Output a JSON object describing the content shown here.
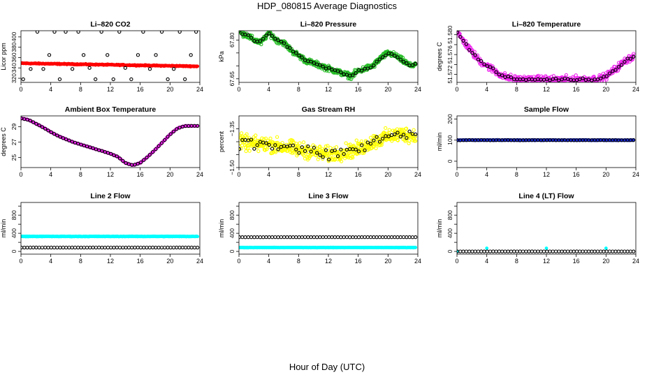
{
  "page": {
    "title": "HDP_080815   Average Diagnostics",
    "xlabel": "Hour of Day (UTC)"
  },
  "colors": {
    "red": "#ff0000",
    "green": "#22bb22",
    "magenta": "#ee22ee",
    "yellow": "#ffff00",
    "blue": "#1a2ad6",
    "cyan": "#00ffff",
    "black": "#000000"
  },
  "chart_data": [
    {
      "type": "scatter",
      "id": "co2",
      "title": "Li–820 CO2",
      "ylabel": "Licor ppm",
      "xlim": [
        0,
        24
      ],
      "ylim": [
        312,
        412
      ],
      "xticks": [
        0,
        4,
        8,
        12,
        16,
        20,
        24
      ],
      "xticklabels": [
        "0",
        "4",
        "8",
        "12",
        "16",
        "20",
        "24"
      ],
      "yticks": [
        320,
        340,
        360,
        380,
        400
      ],
      "yticklabels": [
        "320",
        "340",
        "360",
        "380",
        "400"
      ],
      "series": [
        {
          "name": "all",
          "color": "#ff0000",
          "marker": "filled",
          "model": {
            "kind": "linear",
            "a": 349,
            "b": -0.25,
            "noise": 0.8,
            "count": 400
          }
        },
        {
          "name": "averages",
          "color": "#000000",
          "marker": "open",
          "x": [
            0.3,
            1.3,
            2.2,
            3.0,
            3.8,
            4.5,
            5.2,
            6.0,
            6.9,
            7.7,
            8.4,
            9.2,
            10.0,
            10.8,
            11.6,
            12.4,
            13.2,
            14.0,
            14.8,
            15.7,
            16.4,
            17.3,
            18.1,
            18.9,
            19.7,
            20.5,
            21.3,
            22.0,
            22.8,
            23.5
          ],
          "y": [
            318,
            338,
            410,
            338,
            365,
            410,
            318,
            410,
            338,
            410,
            365,
            340,
            318,
            410,
            365,
            318,
            410,
            340,
            318,
            365,
            410,
            338,
            365,
            410,
            318,
            338,
            410,
            318,
            365,
            410
          ]
        }
      ]
    },
    {
      "type": "scatter",
      "id": "pressure",
      "title": "Li–820 Pressure",
      "ylabel": "kPa",
      "xlim": [
        0,
        24
      ],
      "ylim": [
        67.636,
        67.836
      ],
      "xticks": [
        0,
        4,
        8,
        12,
        16,
        20,
        24
      ],
      "xticklabels": [
        "0",
        "4",
        "8",
        "12",
        "16",
        "20",
        "24"
      ],
      "yticks": [
        67.65,
        67.7,
        67.75,
        67.8
      ],
      "yticklabels": [
        "67.65",
        "",
        "",
        "67.80"
      ],
      "series": [
        {
          "name": "all",
          "color": "#22bb22",
          "marker": "open",
          "model": {
            "kind": "knots",
            "x": [
              0,
              1,
              2,
              3,
              4,
              5,
              6,
              7,
              8,
              9,
              10,
              11,
              12,
              13,
              14,
              15,
              16,
              17,
              18,
              19,
              20,
              21,
              22,
              23,
              24
            ],
            "y": [
              67.83,
              67.82,
              67.8,
              67.79,
              67.83,
              67.8,
              67.79,
              67.76,
              67.74,
              67.72,
              67.71,
              67.7,
              67.69,
              67.68,
              67.67,
              67.66,
              67.68,
              67.69,
              67.7,
              67.73,
              67.75,
              67.74,
              67.72,
              67.7,
              67.71
            ],
            "noise": 0.009,
            "count": 500
          }
        },
        {
          "name": "averages",
          "color": "#000000",
          "marker": "open",
          "model": {
            "kind": "knots",
            "x": [
              0,
              1,
              2,
              3,
              4,
              5,
              6,
              7,
              8,
              9,
              10,
              11,
              12,
              13,
              14,
              15,
              16,
              17,
              18,
              19,
              20,
              21,
              22,
              23,
              24
            ],
            "y": [
              67.83,
              67.82,
              67.8,
              67.79,
              67.83,
              67.8,
              67.79,
              67.76,
              67.74,
              67.72,
              67.71,
              67.7,
              67.69,
              67.68,
              67.67,
              67.66,
              67.68,
              67.69,
              67.7,
              67.73,
              67.75,
              67.74,
              67.72,
              67.7,
              67.71
            ],
            "noise": 0.004,
            "count": 60
          }
        }
      ]
    },
    {
      "type": "scatter",
      "id": "temperature",
      "title": "Li–820 Temperature",
      "ylabel": "degrees C",
      "xlim": [
        0,
        24
      ],
      "ylim": [
        51.5704,
        51.5808
      ],
      "xticks": [
        0,
        4,
        8,
        12,
        16,
        20,
        24
      ],
      "xticklabels": [
        "0",
        "4",
        "8",
        "12",
        "16",
        "20",
        "24"
      ],
      "yticks": [
        51.572,
        51.574,
        51.576,
        51.578,
        51.58
      ],
      "yticklabels": [
        "51.572",
        "",
        "51.576",
        "",
        "51.580"
      ],
      "series": [
        {
          "name": "all",
          "color": "#ee22ee",
          "marker": "open",
          "model": {
            "kind": "knots",
            "x": [
              0,
              1,
              2,
              3,
              4,
              5,
              6,
              7,
              8,
              10,
              12,
              14,
              16,
              18,
              19,
              20,
              21,
              22,
              23,
              24
            ],
            "y": [
              51.5805,
              51.5785,
              51.5765,
              51.5748,
              51.5738,
              51.5728,
              51.5718,
              51.5713,
              51.571,
              51.571,
              51.571,
              51.571,
              51.571,
              51.571,
              51.5711,
              51.5716,
              51.5728,
              51.574,
              51.5752,
              51.5758
            ],
            "noise": 0.0006,
            "count": 420
          }
        },
        {
          "name": "averages",
          "color": "#000000",
          "marker": "open",
          "model": {
            "kind": "knots",
            "x": [
              0,
              1,
              2,
              3,
              4,
              5,
              6,
              7,
              8,
              10,
              12,
              14,
              16,
              18,
              19,
              20,
              21,
              22,
              23,
              24
            ],
            "y": [
              51.5805,
              51.5785,
              51.5765,
              51.5748,
              51.5738,
              51.5728,
              51.5718,
              51.5713,
              51.571,
              51.571,
              51.571,
              51.571,
              51.571,
              51.571,
              51.5711,
              51.5716,
              51.5728,
              51.574,
              51.5752,
              51.5758
            ],
            "noise": 0.0002,
            "count": 60
          }
        }
      ]
    },
    {
      "type": "scatter",
      "id": "ambient",
      "title": "Ambient Box Temperature",
      "ylabel": "degrees C",
      "xlim": [
        0,
        24
      ],
      "ylim": [
        23.7,
        30.4
      ],
      "xticks": [
        0,
        4,
        8,
        12,
        16,
        20,
        24
      ],
      "xticklabels": [
        "0",
        "4",
        "8",
        "12",
        "16",
        "20",
        "24"
      ],
      "yticks": [
        25,
        27,
        29
      ],
      "yticklabels": [
        "25",
        "27",
        "29"
      ],
      "series": [
        {
          "name": "all",
          "color": "#ee22ee",
          "marker": "filled",
          "model": {
            "kind": "knots",
            "x": [
              0,
              1,
              2,
              3,
              4,
              5,
              6,
              7,
              8,
              9,
              10,
              11,
              12,
              13,
              14,
              15,
              16,
              17,
              18,
              19,
              20,
              21,
              22,
              23,
              24
            ],
            "y": [
              30.1,
              29.9,
              29.4,
              28.9,
              28.3,
              27.8,
              27.4,
              27.0,
              26.7,
              26.4,
              26.1,
              25.8,
              25.5,
              25.1,
              24.3,
              24.0,
              24.3,
              25.1,
              26.0,
              27.0,
              28.0,
              28.8,
              29.1,
              29.1,
              29.1
            ],
            "noise": 0.03,
            "count": 400
          }
        },
        {
          "name": "averages",
          "color": "#000000",
          "marker": "open",
          "model": {
            "kind": "knots",
            "x": [
              0,
              1,
              2,
              3,
              4,
              5,
              6,
              7,
              8,
              9,
              10,
              11,
              12,
              13,
              14,
              15,
              16,
              17,
              18,
              19,
              20,
              21,
              22,
              23,
              24
            ],
            "y": [
              30.1,
              29.9,
              29.4,
              28.9,
              28.3,
              27.8,
              27.4,
              27.0,
              26.7,
              26.4,
              26.1,
              25.8,
              25.5,
              25.1,
              24.3,
              24.0,
              24.3,
              25.1,
              26.0,
              27.0,
              28.0,
              28.8,
              29.1,
              29.1,
              29.1
            ],
            "noise": 0.02,
            "count": 60
          }
        }
      ]
    },
    {
      "type": "scatter",
      "id": "rh",
      "title": "Gas Stream RH",
      "ylabel": "percent",
      "xlim": [
        0,
        24
      ],
      "ylim": [
        -1.5,
        -1.3
      ],
      "xticks": [
        0,
        4,
        8,
        12,
        16,
        20,
        24
      ],
      "xticklabels": [
        "0",
        "4",
        "8",
        "12",
        "16",
        "20",
        "24"
      ],
      "yticks": [
        -1.5,
        -1.45,
        -1.4,
        -1.35
      ],
      "yticklabels": [
        "−1.50",
        "",
        "",
        "−1.35"
      ],
      "series": [
        {
          "name": "all",
          "color": "#ffff00",
          "marker": "open",
          "model": {
            "kind": "knots",
            "x": [
              0,
              2,
              4,
              6,
              8,
              10,
              12,
              14,
              16,
              18,
              20,
              22,
              24
            ],
            "y": [
              -1.4,
              -1.41,
              -1.41,
              -1.42,
              -1.43,
              -1.44,
              -1.45,
              -1.44,
              -1.43,
              -1.4,
              -1.38,
              -1.37,
              -1.38
            ],
            "noise": 0.025,
            "count": 500
          }
        },
        {
          "name": "averages",
          "color": "#000000",
          "marker": "open",
          "model": {
            "kind": "knots",
            "x": [
              0,
              2,
              4,
              6,
              8,
              10,
              12,
              14,
              16,
              18,
              20,
              22,
              24
            ],
            "y": [
              -1.4,
              -1.41,
              -1.41,
              -1.42,
              -1.43,
              -1.44,
              -1.45,
              -1.44,
              -1.43,
              -1.4,
              -1.38,
              -1.37,
              -1.38
            ],
            "noise": 0.02,
            "count": 60
          }
        }
      ]
    },
    {
      "type": "scatter",
      "id": "sample-flow",
      "title": "Sample Flow",
      "ylabel": "ml/min",
      "xlim": [
        0,
        24
      ],
      "ylim": [
        -30,
        215
      ],
      "xticks": [
        0,
        4,
        8,
        12,
        16,
        20,
        24
      ],
      "xticklabels": [
        "0",
        "4",
        "8",
        "12",
        "16",
        "20",
        "24"
      ],
      "yticks": [
        0,
        100,
        200
      ],
      "yticklabels": [
        "0",
        "100",
        "200"
      ],
      "series": [
        {
          "name": "all",
          "color": "#1a2ad6",
          "marker": "filled",
          "model": {
            "kind": "linear",
            "a": 100,
            "b": 0,
            "noise": 1.2,
            "count": 400
          }
        },
        {
          "name": "averages",
          "color": "#000000",
          "marker": "open",
          "model": {
            "kind": "linear",
            "a": 100,
            "b": 0,
            "noise": 0.6,
            "count": 60
          }
        }
      ]
    },
    {
      "type": "scatter",
      "id": "line2",
      "title": "Line 2 Flow",
      "ylabel": "ml/min",
      "xlim": [
        0,
        24
      ],
      "ylim": [
        -60,
        1080
      ],
      "xticks": [
        0,
        4,
        8,
        12,
        16,
        20,
        24
      ],
      "xticklabels": [
        "0",
        "4",
        "8",
        "12",
        "16",
        "20",
        "24"
      ],
      "yticks": [
        0,
        200,
        400,
        600,
        800,
        1000
      ],
      "yticklabels": [
        "0",
        "",
        "400",
        "",
        "800",
        ""
      ],
      "series": [
        {
          "name": "all",
          "color": "#00ffff",
          "marker": "filled",
          "model": {
            "kind": "linear",
            "a": 330,
            "b": 0,
            "noise": 4,
            "count": 400
          }
        },
        {
          "name": "averages",
          "color": "#000000",
          "marker": "open",
          "model": {
            "kind": "linear",
            "a": 85,
            "b": 0,
            "noise": 1,
            "count": 60
          }
        }
      ]
    },
    {
      "type": "scatter",
      "id": "line3",
      "title": "Line 3 Flow",
      "ylabel": "ml/min",
      "xlim": [
        0,
        24
      ],
      "ylim": [
        -60,
        1080
      ],
      "xticks": [
        0,
        4,
        8,
        12,
        16,
        20,
        24
      ],
      "xticklabels": [
        "0",
        "4",
        "8",
        "12",
        "16",
        "20",
        "24"
      ],
      "yticks": [
        0,
        200,
        400,
        600,
        800,
        1000
      ],
      "yticklabels": [
        "0",
        "",
        "400",
        "",
        "800",
        ""
      ],
      "series": [
        {
          "name": "all",
          "color": "#00ffff",
          "marker": "filled",
          "model": {
            "kind": "linear",
            "a": 85,
            "b": 0,
            "noise": 3,
            "count": 400
          }
        },
        {
          "name": "averages",
          "color": "#000000",
          "marker": "open",
          "model": {
            "kind": "linear",
            "a": 315,
            "b": 0,
            "noise": 1,
            "count": 60
          }
        }
      ]
    },
    {
      "type": "scatter",
      "id": "line4",
      "title": "Line 4 (LT) Flow",
      "ylabel": "ml/min",
      "xlim": [
        0,
        24
      ],
      "ylim": [
        -60,
        1080
      ],
      "xticks": [
        0,
        4,
        8,
        12,
        16,
        20,
        24
      ],
      "xticklabels": [
        "0",
        "4",
        "8",
        "12",
        "16",
        "20",
        "24"
      ],
      "yticks": [
        0,
        200,
        400,
        600,
        800,
        1000
      ],
      "yticklabels": [
        "0",
        "",
        "400",
        "",
        "800",
        ""
      ],
      "series": [
        {
          "name": "all",
          "color": "#00ffff",
          "marker": "filled",
          "x": [
            0.05,
            4.0,
            12.0,
            20.0
          ],
          "y": [
            0,
            70,
            70,
            70
          ]
        },
        {
          "name": "averages",
          "color": "#000000",
          "marker": "open",
          "model": {
            "kind": "linear",
            "a": 0,
            "b": 0,
            "noise": 0.5,
            "count": 60
          }
        }
      ]
    }
  ]
}
